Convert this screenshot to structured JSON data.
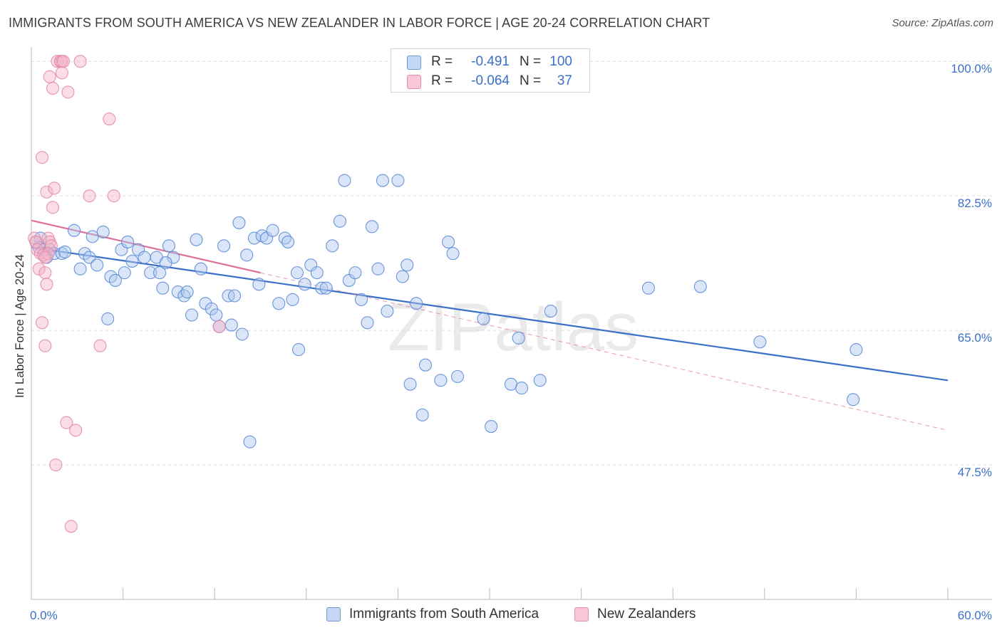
{
  "title": "IMMIGRANTS FROM SOUTH AMERICA VS NEW ZEALANDER IN LABOR FORCE | AGE 20-24 CORRELATION CHART",
  "source": "Source: ZipAtlas.com",
  "watermark": "ZIPatlas",
  "colors": {
    "blue": "#3a70c7",
    "blue_fill": "#aec8ee",
    "pink": "#e06f96",
    "pink_fill": "#f4b4c8",
    "grid": "#dcdcdc",
    "axis_text": "#3a70c7"
  },
  "legend": {
    "rows": [
      {
        "r_label": "R =",
        "r_value": "-0.491",
        "n_label": "N =",
        "n_value": "100"
      },
      {
        "r_label": "R =",
        "r_value": "-0.064",
        "n_label": "N =",
        "n_value": "37"
      }
    ]
  },
  "bottom_legend": {
    "blue_label": "Immigrants from South America",
    "pink_label": "New Zealanders"
  },
  "chart_data": {
    "type": "scatter",
    "title": "IMMIGRANTS FROM SOUTH AMERICA VS NEW ZEALANDER IN LABOR FORCE | AGE 20-24 CORRELATION CHART",
    "xlabel": "",
    "ylabel": "In Labor Force | Age 20-24",
    "xlim": [
      0,
      60
    ],
    "ylim": [
      30,
      101.5
    ],
    "x_tick_labels": [
      "0.0%",
      "60.0%"
    ],
    "x_minor_ticks": [
      6,
      12,
      18,
      24,
      30,
      36,
      42,
      48,
      54,
      60
    ],
    "y_ticks": [
      100,
      82.5,
      65,
      47.5
    ],
    "y_tick_labels": [
      "100.0%",
      "82.5%",
      "65.0%",
      "47.5%"
    ],
    "grid": "horizontal dashed",
    "series": [
      {
        "name": "Immigrants from South America",
        "color": "#3a70c7",
        "points": [
          [
            0.3,
            76.5
          ],
          [
            0.6,
            77.0
          ],
          [
            0.8,
            75.5
          ],
          [
            1.0,
            74.5
          ],
          [
            1.2,
            75.5
          ],
          [
            1.5,
            75.0
          ],
          [
            2.0,
            75.0
          ],
          [
            2.2,
            75.2
          ],
          [
            2.8,
            78.0
          ],
          [
            3.2,
            73.0
          ],
          [
            3.5,
            75.0
          ],
          [
            3.8,
            74.5
          ],
          [
            4.0,
            77.2
          ],
          [
            4.3,
            73.5
          ],
          [
            4.7,
            77.8
          ],
          [
            5.0,
            66.5
          ],
          [
            5.2,
            72.0
          ],
          [
            5.5,
            71.5
          ],
          [
            5.9,
            75.5
          ],
          [
            6.1,
            72.5
          ],
          [
            6.3,
            76.5
          ],
          [
            6.6,
            74.0
          ],
          [
            7.0,
            75.5
          ],
          [
            7.4,
            74.5
          ],
          [
            7.8,
            72.5
          ],
          [
            8.2,
            74.5
          ],
          [
            8.4,
            72.5
          ],
          [
            8.6,
            70.5
          ],
          [
            9.0,
            76.0
          ],
          [
            9.3,
            74.5
          ],
          [
            9.6,
            70.0
          ],
          [
            10.0,
            69.5
          ],
          [
            10.2,
            70.0
          ],
          [
            10.5,
            67.0
          ],
          [
            10.8,
            76.8
          ],
          [
            11.1,
            73.0
          ],
          [
            11.4,
            68.5
          ],
          [
            11.8,
            67.8
          ],
          [
            12.1,
            67.0
          ],
          [
            12.3,
            65.5
          ],
          [
            12.6,
            76.0
          ],
          [
            12.9,
            69.5
          ],
          [
            13.3,
            69.5
          ],
          [
            13.6,
            79.0
          ],
          [
            13.8,
            64.5
          ],
          [
            14.1,
            74.8
          ],
          [
            14.6,
            77.0
          ],
          [
            14.9,
            71.0
          ],
          [
            15.1,
            77.3
          ],
          [
            15.4,
            77.0
          ],
          [
            15.8,
            78.0
          ],
          [
            16.2,
            68.5
          ],
          [
            16.6,
            77.0
          ],
          [
            16.8,
            76.5
          ],
          [
            17.1,
            69.0
          ],
          [
            17.4,
            72.5
          ],
          [
            17.5,
            62.5
          ],
          [
            17.9,
            71.0
          ],
          [
            18.3,
            73.5
          ],
          [
            18.7,
            72.5
          ],
          [
            19.0,
            70.5
          ],
          [
            19.3,
            70.5
          ],
          [
            19.7,
            76.0
          ],
          [
            20.2,
            79.2
          ],
          [
            20.5,
            84.5
          ],
          [
            20.8,
            71.5
          ],
          [
            21.2,
            72.5
          ],
          [
            21.6,
            69.0
          ],
          [
            22.0,
            66.0
          ],
          [
            22.3,
            78.5
          ],
          [
            22.7,
            73.0
          ],
          [
            23.0,
            84.5
          ],
          [
            23.3,
            67.5
          ],
          [
            24.0,
            84.5
          ],
          [
            24.3,
            72.0
          ],
          [
            24.6,
            73.5
          ],
          [
            24.8,
            58.0
          ],
          [
            25.2,
            68.5
          ],
          [
            25.6,
            54.0
          ],
          [
            25.8,
            60.5
          ],
          [
            26.8,
            58.5
          ],
          [
            27.3,
            76.5
          ],
          [
            27.6,
            75.0
          ],
          [
            27.9,
            59.0
          ],
          [
            29.6,
            66.5
          ],
          [
            30.1,
            52.5
          ],
          [
            31.4,
            58.0
          ],
          [
            31.9,
            64.0
          ],
          [
            32.1,
            57.5
          ],
          [
            33.3,
            58.5
          ],
          [
            34.0,
            67.5
          ],
          [
            40.4,
            70.5
          ],
          [
            43.8,
            70.7
          ],
          [
            47.7,
            63.5
          ],
          [
            54.0,
            62.5
          ],
          [
            53.8,
            56.0
          ],
          [
            13.1,
            65.7
          ],
          [
            8.8,
            73.8
          ],
          [
            14.3,
            50.5
          ],
          [
            0.5,
            75.8
          ]
        ]
      },
      {
        "name": "New Zealanders",
        "color": "#e06f96",
        "points": [
          [
            0.2,
            77.0
          ],
          [
            0.3,
            76.5
          ],
          [
            0.4,
            75.5
          ],
          [
            0.5,
            73.0
          ],
          [
            0.6,
            75.0
          ],
          [
            0.7,
            66.0
          ],
          [
            0.7,
            87.5
          ],
          [
            0.8,
            74.8
          ],
          [
            0.9,
            63.0
          ],
          [
            0.9,
            72.5
          ],
          [
            1.0,
            71.0
          ],
          [
            1.1,
            77.0
          ],
          [
            1.2,
            76.5
          ],
          [
            1.3,
            76.0
          ],
          [
            1.0,
            83.0
          ],
          [
            1.2,
            98.0
          ],
          [
            1.4,
            96.5
          ],
          [
            1.5,
            83.5
          ],
          [
            1.4,
            81.0
          ],
          [
            1.6,
            47.5
          ],
          [
            1.7,
            100.0
          ],
          [
            1.9,
            100.0
          ],
          [
            2.0,
            100.0
          ],
          [
            2.0,
            98.5
          ],
          [
            2.1,
            100.0
          ],
          [
            2.4,
            96.0
          ],
          [
            2.3,
            53.0
          ],
          [
            2.6,
            39.5
          ],
          [
            2.9,
            52.0
          ],
          [
            3.2,
            100.0
          ],
          [
            3.8,
            82.5
          ],
          [
            4.5,
            63.0
          ],
          [
            5.1,
            92.5
          ],
          [
            5.4,
            82.5
          ],
          [
            12.3,
            65.5
          ],
          [
            1.1,
            75.0
          ],
          [
            0.9,
            74.5
          ]
        ]
      }
    ],
    "trend_lines": [
      {
        "series": "Immigrants from South America",
        "x": [
          0,
          60
        ],
        "y": [
          75.8,
          58.5
        ],
        "style": "solid"
      },
      {
        "series": "New Zealanders",
        "x": [
          0,
          15
        ],
        "y": [
          79.3,
          72.5
        ],
        "style": "solid"
      },
      {
        "series": "New Zealanders",
        "x": [
          15,
          60
        ],
        "y": [
          72.5,
          52.0
        ],
        "style": "dashed"
      }
    ]
  }
}
